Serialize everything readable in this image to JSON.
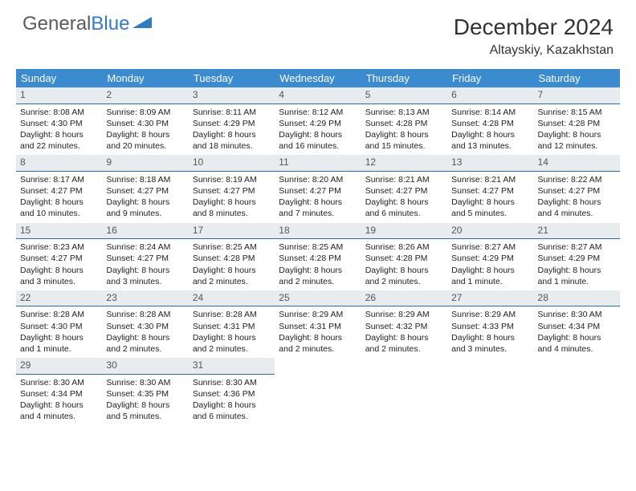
{
  "logo": {
    "text1": "General",
    "text2": "Blue"
  },
  "title": "December 2024",
  "subtitle": "Altayskiy, Kazakhstan",
  "columns": [
    "Sunday",
    "Monday",
    "Tuesday",
    "Wednesday",
    "Thursday",
    "Friday",
    "Saturday"
  ],
  "colors": {
    "header_bg": "#3b8bd0",
    "header_text": "#ffffff",
    "daynum_bg": "#e9ecef",
    "daynum_border": "#2f6aa3",
    "logo_gray": "#5b5b5b",
    "logo_blue": "#2f7bc4",
    "body_bg": "#ffffff"
  },
  "cells": [
    {
      "n": "1",
      "sr": "8:08 AM",
      "ss": "4:30 PM",
      "dl": "8 hours and 22 minutes."
    },
    {
      "n": "2",
      "sr": "8:09 AM",
      "ss": "4:30 PM",
      "dl": "8 hours and 20 minutes."
    },
    {
      "n": "3",
      "sr": "8:11 AM",
      "ss": "4:29 PM",
      "dl": "8 hours and 18 minutes."
    },
    {
      "n": "4",
      "sr": "8:12 AM",
      "ss": "4:29 PM",
      "dl": "8 hours and 16 minutes."
    },
    {
      "n": "5",
      "sr": "8:13 AM",
      "ss": "4:28 PM",
      "dl": "8 hours and 15 minutes."
    },
    {
      "n": "6",
      "sr": "8:14 AM",
      "ss": "4:28 PM",
      "dl": "8 hours and 13 minutes."
    },
    {
      "n": "7",
      "sr": "8:15 AM",
      "ss": "4:28 PM",
      "dl": "8 hours and 12 minutes."
    },
    {
      "n": "8",
      "sr": "8:17 AM",
      "ss": "4:27 PM",
      "dl": "8 hours and 10 minutes."
    },
    {
      "n": "9",
      "sr": "8:18 AM",
      "ss": "4:27 PM",
      "dl": "8 hours and 9 minutes."
    },
    {
      "n": "10",
      "sr": "8:19 AM",
      "ss": "4:27 PM",
      "dl": "8 hours and 8 minutes."
    },
    {
      "n": "11",
      "sr": "8:20 AM",
      "ss": "4:27 PM",
      "dl": "8 hours and 7 minutes."
    },
    {
      "n": "12",
      "sr": "8:21 AM",
      "ss": "4:27 PM",
      "dl": "8 hours and 6 minutes."
    },
    {
      "n": "13",
      "sr": "8:21 AM",
      "ss": "4:27 PM",
      "dl": "8 hours and 5 minutes."
    },
    {
      "n": "14",
      "sr": "8:22 AM",
      "ss": "4:27 PM",
      "dl": "8 hours and 4 minutes."
    },
    {
      "n": "15",
      "sr": "8:23 AM",
      "ss": "4:27 PM",
      "dl": "8 hours and 3 minutes."
    },
    {
      "n": "16",
      "sr": "8:24 AM",
      "ss": "4:27 PM",
      "dl": "8 hours and 3 minutes."
    },
    {
      "n": "17",
      "sr": "8:25 AM",
      "ss": "4:28 PM",
      "dl": "8 hours and 2 minutes."
    },
    {
      "n": "18",
      "sr": "8:25 AM",
      "ss": "4:28 PM",
      "dl": "8 hours and 2 minutes."
    },
    {
      "n": "19",
      "sr": "8:26 AM",
      "ss": "4:28 PM",
      "dl": "8 hours and 2 minutes."
    },
    {
      "n": "20",
      "sr": "8:27 AM",
      "ss": "4:29 PM",
      "dl": "8 hours and 1 minute."
    },
    {
      "n": "21",
      "sr": "8:27 AM",
      "ss": "4:29 PM",
      "dl": "8 hours and 1 minute."
    },
    {
      "n": "22",
      "sr": "8:28 AM",
      "ss": "4:30 PM",
      "dl": "8 hours and 1 minute."
    },
    {
      "n": "23",
      "sr": "8:28 AM",
      "ss": "4:30 PM",
      "dl": "8 hours and 2 minutes."
    },
    {
      "n": "24",
      "sr": "8:28 AM",
      "ss": "4:31 PM",
      "dl": "8 hours and 2 minutes."
    },
    {
      "n": "25",
      "sr": "8:29 AM",
      "ss": "4:31 PM",
      "dl": "8 hours and 2 minutes."
    },
    {
      "n": "26",
      "sr": "8:29 AM",
      "ss": "4:32 PM",
      "dl": "8 hours and 2 minutes."
    },
    {
      "n": "27",
      "sr": "8:29 AM",
      "ss": "4:33 PM",
      "dl": "8 hours and 3 minutes."
    },
    {
      "n": "28",
      "sr": "8:30 AM",
      "ss": "4:34 PM",
      "dl": "8 hours and 4 minutes."
    },
    {
      "n": "29",
      "sr": "8:30 AM",
      "ss": "4:34 PM",
      "dl": "8 hours and 4 minutes."
    },
    {
      "n": "30",
      "sr": "8:30 AM",
      "ss": "4:35 PM",
      "dl": "8 hours and 5 minutes."
    },
    {
      "n": "31",
      "sr": "8:30 AM",
      "ss": "4:36 PM",
      "dl": "8 hours and 6 minutes."
    }
  ],
  "labels": {
    "sunrise": "Sunrise: ",
    "sunset": "Sunset: ",
    "daylight": "Daylight: "
  }
}
